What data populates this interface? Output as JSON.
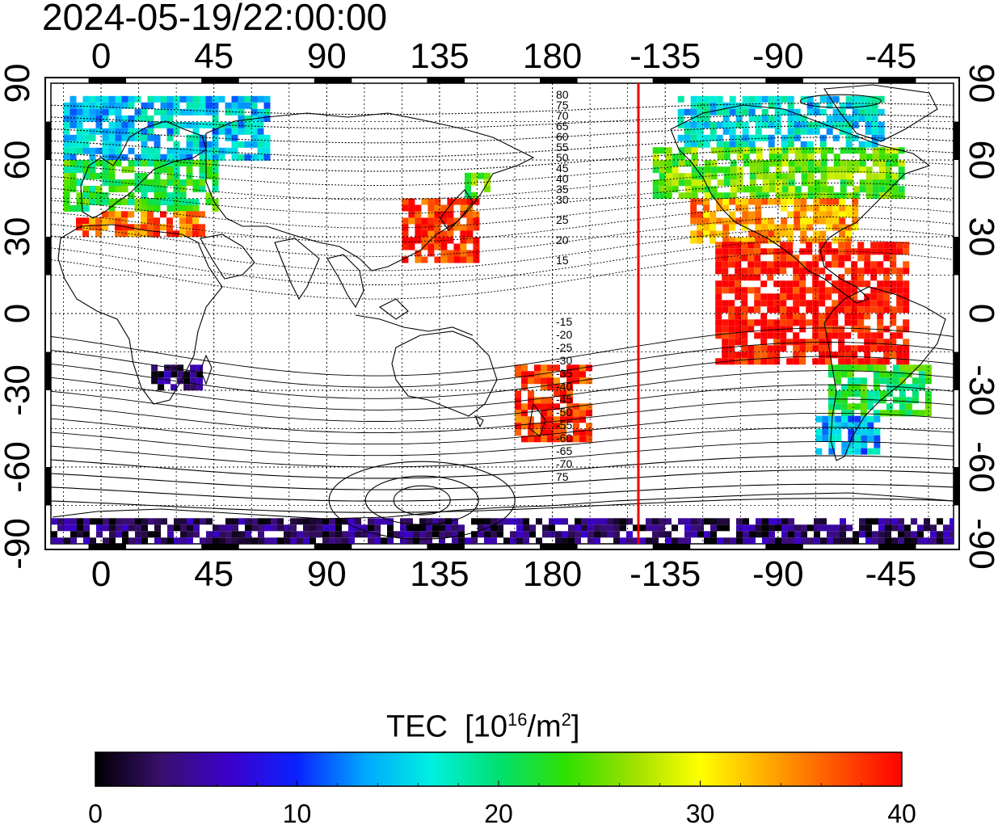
{
  "title": "2024-05-19/22:00:00",
  "map": {
    "top_lon_labels": [
      "0",
      "45",
      "90",
      "135",
      "180",
      "-135",
      "-90",
      "-45"
    ],
    "bottom_lon_labels": [
      "0",
      "45",
      "90",
      "135",
      "180",
      "-135",
      "-90",
      "-45"
    ],
    "left_lat_labels": [
      "90",
      "60",
      "30",
      "0",
      "-30",
      "-60",
      "-90"
    ],
    "right_lat_labels": [
      "90",
      "60",
      "30",
      "0",
      "-30",
      "-60",
      "-90"
    ],
    "top_lon_values": [
      0,
      45,
      90,
      135,
      180,
      -135,
      -90,
      -45
    ],
    "lat_values": [
      90,
      60,
      30,
      0,
      -30,
      -60,
      -90
    ],
    "magnetic_lat_labels_north": [
      "80",
      "75",
      "70",
      "65",
      "60",
      "55",
      "50",
      "45",
      "40",
      "35",
      "30",
      "25",
      "20",
      "15"
    ],
    "magnetic_lat_labels_south": [
      "-15",
      "-20",
      "-25",
      "-30",
      "-35",
      "-40",
      "-45",
      "-50",
      "-55",
      "-60",
      "-65",
      "-70",
      "75"
    ],
    "terminator_color": "#ee0000"
  },
  "colorbar": {
    "title": "TEC",
    "unit_base": "[10",
    "unit_exp": "16",
    "unit_mid": "/m",
    "unit_exp2": "2",
    "unit_end": "]",
    "min": 0,
    "max": 40,
    "tick_labels": [
      "0",
      "10",
      "20",
      "30",
      "40"
    ],
    "tick_values": [
      0,
      10,
      20,
      30,
      40
    ],
    "colors": [
      "#000000",
      "#3a0f6e",
      "#3c00cc",
      "#0a22ff",
      "#00a6ff",
      "#00f0e0",
      "#00e070",
      "#2ee000",
      "#9ee000",
      "#ffff00",
      "#ffaa00",
      "#ff5500",
      "#ff0000"
    ]
  },
  "chart_data": {
    "type": "heatmap",
    "title": "2024-05-19/22:00:00",
    "variable": "TEC",
    "unit": "10^16/m^2",
    "x_range": [
      -20,
      340
    ],
    "y_range": [
      -90,
      90
    ],
    "colorscale_range": [
      0,
      40
    ],
    "regions": [
      {
        "lon": [
          -15,
          65
        ],
        "lat": [
          60,
          85
        ],
        "tec": 15
      },
      {
        "lon": [
          -15,
          45
        ],
        "lat": [
          40,
          60
        ],
        "tec": 22
      },
      {
        "lon": [
          -10,
          40
        ],
        "lat": [
          30,
          40
        ],
        "tec": 36
      },
      {
        "lon": [
          120,
          150
        ],
        "lat": [
          20,
          45
        ],
        "tec": 38
      },
      {
        "lon": [
          145,
          155
        ],
        "lat": [
          45,
          55
        ],
        "tec": 24
      },
      {
        "lon": [
          20,
          40
        ],
        "lat": [
          -30,
          -20
        ],
        "tec": 3
      },
      {
        "lon": [
          165,
          195
        ],
        "lat": [
          -50,
          -20
        ],
        "tec": 38
      },
      {
        "lon": [
          230,
          310
        ],
        "lat": [
          65,
          85
        ],
        "tec": 16
      },
      {
        "lon": [
          220,
          320
        ],
        "lat": [
          45,
          65
        ],
        "tec": 25
      },
      {
        "lon": [
          235,
          300
        ],
        "lat": [
          28,
          45
        ],
        "tec": 34
      },
      {
        "lon": [
          245,
          320
        ],
        "lat": [
          -20,
          28
        ],
        "tec": 40
      },
      {
        "lon": [
          290,
          330
        ],
        "lat": [
          -40,
          -20
        ],
        "tec": 22
      },
      {
        "lon": [
          285,
          310
        ],
        "lat": [
          -55,
          -40
        ],
        "tec": 14
      },
      {
        "lon": [
          -20,
          340
        ],
        "lat": [
          -90,
          -80
        ],
        "tec": 3
      }
    ]
  }
}
